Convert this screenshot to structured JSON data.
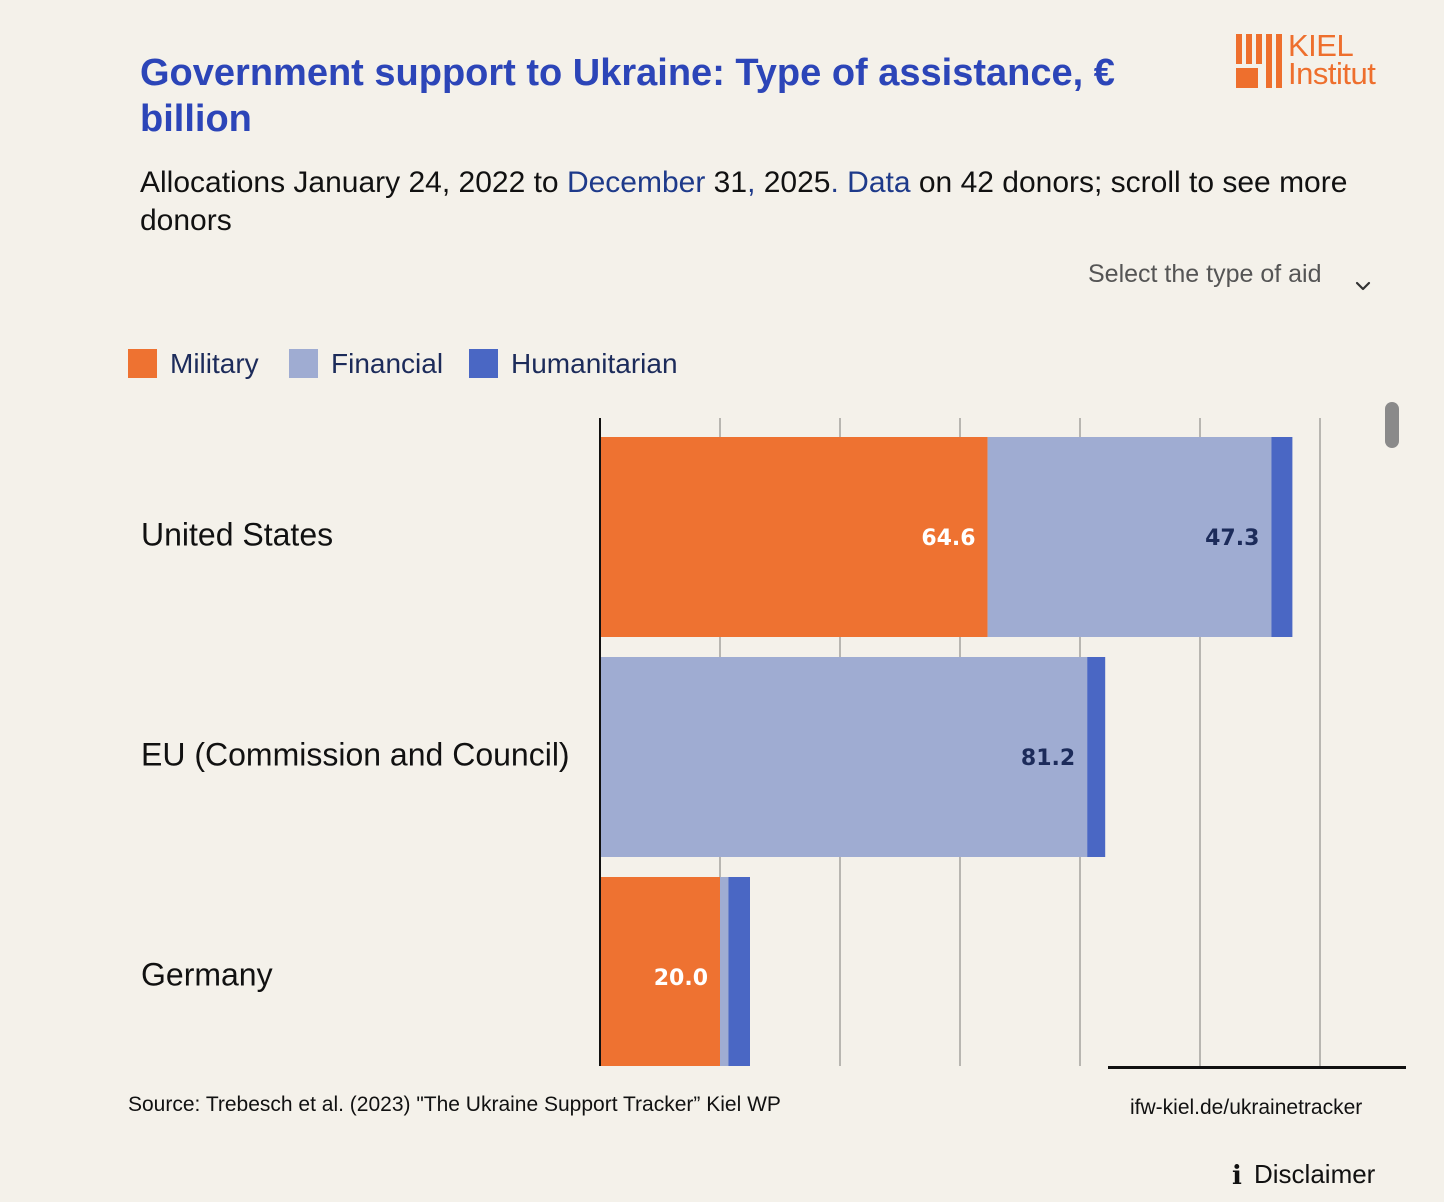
{
  "header": {
    "title": "Government support to Ukraine: Type of assistance, € billion",
    "subtitle_parts": [
      "Allocations January 24, 2022 to ",
      "December",
      " 31",
      ",",
      " 2025",
      ". Data",
      " on 42 donors; scroll to see more donors"
    ],
    "logo": {
      "line1": "KIEL",
      "line2": "Institut",
      "color": "#ee6f2d"
    }
  },
  "dropdown": {
    "label": "Select the type of aid",
    "icon": "chevron-down-icon"
  },
  "legend": [
    {
      "label": "Military",
      "color": "#ee7231"
    },
    {
      "label": "Financial",
      "color": "#9facd2"
    },
    {
      "label": "Humanitarian",
      "color": "#4a67c4"
    }
  ],
  "chart_data": {
    "type": "bar",
    "orientation": "horizontal",
    "stacked": true,
    "categories": [
      "United States",
      "EU (Commission and Council)",
      "Germany"
    ],
    "series": [
      {
        "name": "Military",
        "color": "#ee7231",
        "values": [
          64.6,
          0,
          20.0
        ]
      },
      {
        "name": "Financial",
        "color": "#9facd2",
        "values": [
          47.3,
          81.2,
          1.4
        ]
      },
      {
        "name": "Humanitarian",
        "color": "#4a67c4",
        "values": [
          3.5,
          3.0,
          3.6
        ]
      }
    ],
    "data_labels": [
      {
        "category": "United States",
        "series": "Military",
        "text": "64.6"
      },
      {
        "category": "United States",
        "series": "Financial",
        "text": "47.3"
      },
      {
        "category": "EU (Commission and Council)",
        "series": "Financial",
        "text": "81.2"
      },
      {
        "category": "Germany",
        "series": "Military",
        "text": "20.0"
      }
    ],
    "xlim": [
      0,
      120
    ],
    "gridline_step": 20,
    "grid": true,
    "tick_labels_visible": false,
    "legend_position": "top-left"
  },
  "footer": {
    "source": "Source: Trebesch et al. (2023) \"The Ukraine Support Tracker” Kiel WP",
    "link": "ifw-kiel.de/ukrainetracker",
    "disclaimer": "Disclaimer"
  }
}
